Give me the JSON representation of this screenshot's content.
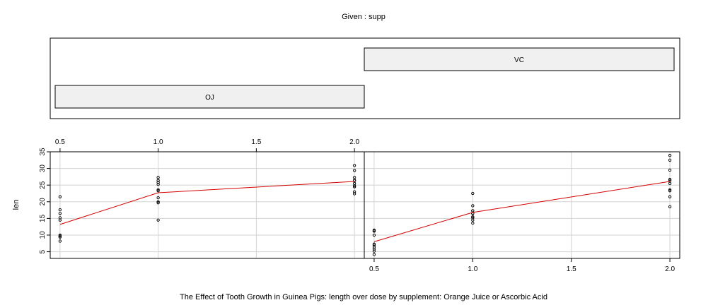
{
  "chart_data": {
    "type": "scatter",
    "title": "Given : supp",
    "xlabel": "The Effect of Tooth Growth in Guinea Pigs: length over dose by supplement: Orange Juice or Ascorbic Acid",
    "ylabel": "len",
    "x_ticks": [
      "0.5",
      "1.0",
      "1.5",
      "2.0"
    ],
    "y_ticks": [
      "5",
      "10",
      "15",
      "20",
      "25",
      "30",
      "35"
    ],
    "xlim": [
      0.45,
      2.05
    ],
    "ylim": [
      3,
      35
    ],
    "grid": true,
    "given_levels": [
      "OJ",
      "VC"
    ],
    "panels": [
      {
        "name": "OJ",
        "points": [
          [
            0.5,
            15.2
          ],
          [
            0.5,
            21.5
          ],
          [
            0.5,
            17.6
          ],
          [
            0.5,
            9.7
          ],
          [
            0.5,
            14.5
          ],
          [
            0.5,
            10.0
          ],
          [
            0.5,
            8.2
          ],
          [
            0.5,
            9.4
          ],
          [
            0.5,
            16.5
          ],
          [
            0.5,
            9.7
          ],
          [
            1.0,
            19.7
          ],
          [
            1.0,
            23.3
          ],
          [
            1.0,
            23.6
          ],
          [
            1.0,
            26.4
          ],
          [
            1.0,
            20.0
          ],
          [
            1.0,
            25.2
          ],
          [
            1.0,
            25.8
          ],
          [
            1.0,
            21.2
          ],
          [
            1.0,
            14.5
          ],
          [
            1.0,
            27.3
          ],
          [
            2.0,
            25.5
          ],
          [
            2.0,
            26.4
          ],
          [
            2.0,
            22.4
          ],
          [
            2.0,
            24.5
          ],
          [
            2.0,
            24.8
          ],
          [
            2.0,
            30.9
          ],
          [
            2.0,
            26.4
          ],
          [
            2.0,
            27.3
          ],
          [
            2.0,
            29.4
          ],
          [
            2.0,
            23.0
          ]
        ],
        "smooth": [
          [
            0.5,
            13.2
          ],
          [
            1.0,
            22.7
          ],
          [
            2.0,
            26.1
          ]
        ]
      },
      {
        "name": "VC",
        "points": [
          [
            0.5,
            4.2
          ],
          [
            0.5,
            11.5
          ],
          [
            0.5,
            7.3
          ],
          [
            0.5,
            5.8
          ],
          [
            0.5,
            6.4
          ],
          [
            0.5,
            10.0
          ],
          [
            0.5,
            11.2
          ],
          [
            0.5,
            11.2
          ],
          [
            0.5,
            5.2
          ],
          [
            0.5,
            7.0
          ],
          [
            1.0,
            16.5
          ],
          [
            1.0,
            16.5
          ],
          [
            1.0,
            15.2
          ],
          [
            1.0,
            17.3
          ],
          [
            1.0,
            22.5
          ],
          [
            1.0,
            17.3
          ],
          [
            1.0,
            13.6
          ],
          [
            1.0,
            14.5
          ],
          [
            1.0,
            18.8
          ],
          [
            1.0,
            15.5
          ],
          [
            2.0,
            23.6
          ],
          [
            2.0,
            18.5
          ],
          [
            2.0,
            33.9
          ],
          [
            2.0,
            25.5
          ],
          [
            2.0,
            26.4
          ],
          [
            2.0,
            32.5
          ],
          [
            2.0,
            26.7
          ],
          [
            2.0,
            21.5
          ],
          [
            2.0,
            23.3
          ],
          [
            2.0,
            29.5
          ]
        ],
        "smooth": [
          [
            0.5,
            8.0
          ],
          [
            1.0,
            16.8
          ],
          [
            2.0,
            26.1
          ]
        ]
      }
    ]
  },
  "colors": {
    "smooth_line": "#d40000",
    "strip_fill": "#f0f0f0",
    "grid": "#d3d3d3",
    "points": "#000000"
  }
}
